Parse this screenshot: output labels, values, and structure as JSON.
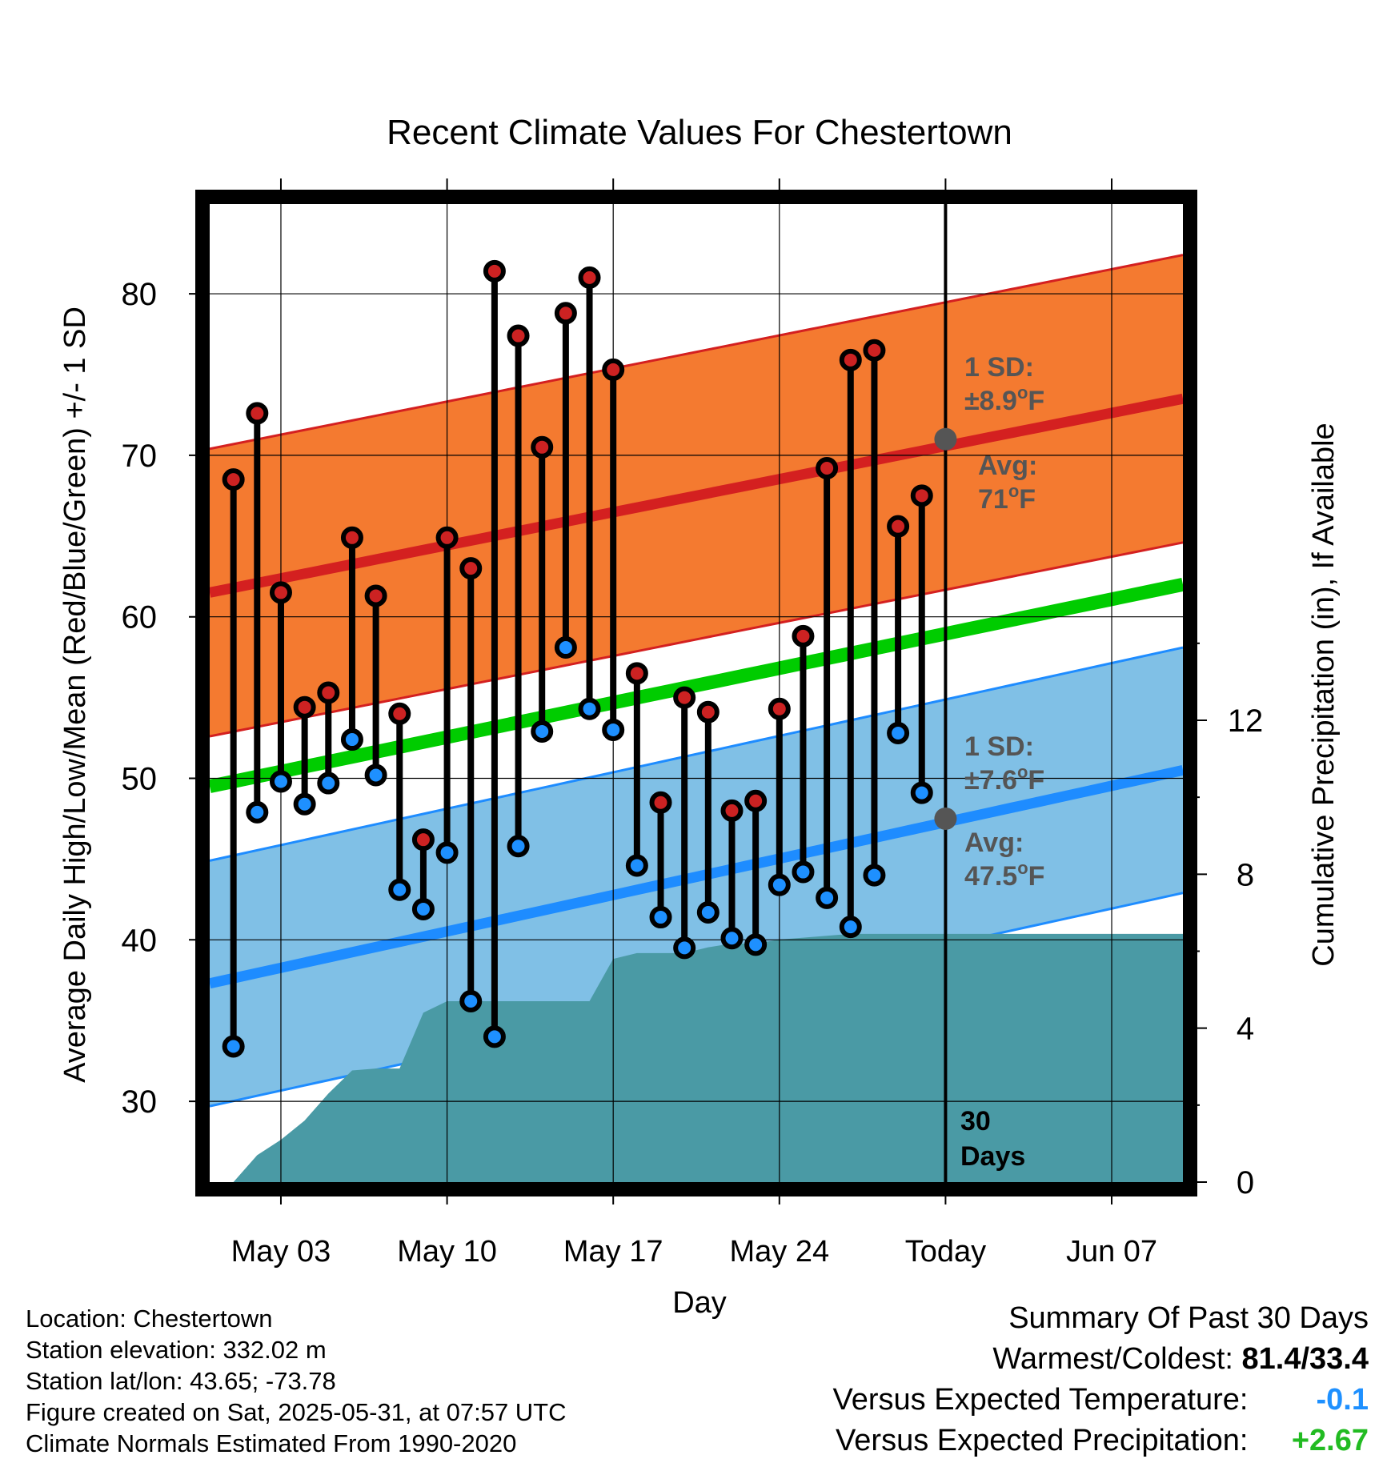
{
  "chart_data": {
    "type": "line",
    "title": "Recent Climate Values For Chestertown",
    "xlabel": "Day",
    "ylabel": "Average Daily High/Low/Mean (Red/Blue/Green) +/- 1 SD",
    "y2label": "Cumulative Precipitation (in), If Available",
    "ylim": [
      25,
      86
    ],
    "y_ticks": [
      30,
      40,
      50,
      60,
      70,
      80
    ],
    "y2lim": [
      0,
      25.6
    ],
    "y2_ticks": [
      0,
      4,
      8,
      12
    ],
    "x_range": [
      "2025-04-30",
      "2025-06-10"
    ],
    "x_ticks": [
      {
        "date": "2025-05-03",
        "label": "May 03"
      },
      {
        "date": "2025-05-10",
        "label": "May 10"
      },
      {
        "date": "2025-05-17",
        "label": "May 17"
      },
      {
        "date": "2025-05-24",
        "label": "May 24"
      },
      {
        "date": "2025-05-31",
        "label": "Today"
      },
      {
        "date": "2025-06-07",
        "label": "Jun 07"
      }
    ],
    "today": "2025-05-31",
    "grid": true,
    "colors": {
      "high_band": "#f47a30",
      "high_line": "#d42020",
      "low_band": "#80c0e6",
      "low_line": "#1e8cff",
      "mean_line": "#00cc00",
      "precip": "#4a9aa5",
      "high_marker": "#cc2222",
      "low_marker": "#1e90ff",
      "normal_marker": "#555555",
      "annotation": "#555555"
    },
    "normals": {
      "high_mean": {
        "start": 61.5,
        "end": 73.5
      },
      "high_sd": 8.9,
      "low_mean": {
        "start": 37.3,
        "end": 50.5
      },
      "low_sd": 7.6,
      "mean": {
        "start": 49.5,
        "end": 62
      }
    },
    "series": [
      {
        "name": "High",
        "values": [
          {
            "date": "2025-05-01",
            "y": 68.5
          },
          {
            "date": "2025-05-02",
            "y": 72.6
          },
          {
            "date": "2025-05-03",
            "y": 61.5
          },
          {
            "date": "2025-05-04",
            "y": 54.4
          },
          {
            "date": "2025-05-05",
            "y": 55.3
          },
          {
            "date": "2025-05-06",
            "y": 64.9
          },
          {
            "date": "2025-05-07",
            "y": 61.3
          },
          {
            "date": "2025-05-08",
            "y": 54.0
          },
          {
            "date": "2025-05-09",
            "y": 46.2
          },
          {
            "date": "2025-05-10",
            "y": 64.9
          },
          {
            "date": "2025-05-11",
            "y": 63.0
          },
          {
            "date": "2025-05-12",
            "y": 81.4
          },
          {
            "date": "2025-05-13",
            "y": 77.4
          },
          {
            "date": "2025-05-14",
            "y": 70.5
          },
          {
            "date": "2025-05-15",
            "y": 78.8
          },
          {
            "date": "2025-05-16",
            "y": 81.0
          },
          {
            "date": "2025-05-17",
            "y": 75.3
          },
          {
            "date": "2025-05-18",
            "y": 56.5
          },
          {
            "date": "2025-05-19",
            "y": 48.5
          },
          {
            "date": "2025-05-20",
            "y": 55.0
          },
          {
            "date": "2025-05-21",
            "y": 54.1
          },
          {
            "date": "2025-05-22",
            "y": 48.0
          },
          {
            "date": "2025-05-23",
            "y": 48.6
          },
          {
            "date": "2025-05-24",
            "y": 54.3
          },
          {
            "date": "2025-05-25",
            "y": 58.8
          },
          {
            "date": "2025-05-26",
            "y": 69.2
          },
          {
            "date": "2025-05-27",
            "y": 75.9
          },
          {
            "date": "2025-05-28",
            "y": 76.5
          },
          {
            "date": "2025-05-29",
            "y": 65.6
          },
          {
            "date": "2025-05-30",
            "y": 67.5
          }
        ]
      },
      {
        "name": "Low",
        "values": [
          {
            "date": "2025-05-01",
            "y": 33.4
          },
          {
            "date": "2025-05-02",
            "y": 47.9
          },
          {
            "date": "2025-05-03",
            "y": 49.8
          },
          {
            "date": "2025-05-04",
            "y": 48.4
          },
          {
            "date": "2025-05-05",
            "y": 49.7
          },
          {
            "date": "2025-05-06",
            "y": 52.4
          },
          {
            "date": "2025-05-07",
            "y": 50.2
          },
          {
            "date": "2025-05-08",
            "y": 43.1
          },
          {
            "date": "2025-05-09",
            "y": 41.9
          },
          {
            "date": "2025-05-10",
            "y": 45.4
          },
          {
            "date": "2025-05-11",
            "y": 36.2
          },
          {
            "date": "2025-05-12",
            "y": 34.0
          },
          {
            "date": "2025-05-13",
            "y": 45.8
          },
          {
            "date": "2025-05-14",
            "y": 52.9
          },
          {
            "date": "2025-05-15",
            "y": 58.1
          },
          {
            "date": "2025-05-16",
            "y": 54.3
          },
          {
            "date": "2025-05-17",
            "y": 53.0
          },
          {
            "date": "2025-05-18",
            "y": 44.6
          },
          {
            "date": "2025-05-19",
            "y": 41.4
          },
          {
            "date": "2025-05-20",
            "y": 39.5
          },
          {
            "date": "2025-05-21",
            "y": 41.7
          },
          {
            "date": "2025-05-22",
            "y": 40.1
          },
          {
            "date": "2025-05-23",
            "y": 39.7
          },
          {
            "date": "2025-05-24",
            "y": 43.4
          },
          {
            "date": "2025-05-25",
            "y": 44.2
          },
          {
            "date": "2025-05-26",
            "y": 42.6
          },
          {
            "date": "2025-05-27",
            "y": 40.8
          },
          {
            "date": "2025-05-28",
            "y": 44.0
          },
          {
            "date": "2025-05-29",
            "y": 52.8
          },
          {
            "date": "2025-05-30",
            "y": 49.1
          }
        ]
      }
    ],
    "precipitation": [
      {
        "date": "2025-04-30",
        "y": 0
      },
      {
        "date": "2025-05-01",
        "y": 0
      },
      {
        "date": "2025-05-02",
        "y": 0.7
      },
      {
        "date": "2025-05-03",
        "y": 1.1
      },
      {
        "date": "2025-05-04",
        "y": 1.6
      },
      {
        "date": "2025-05-05",
        "y": 2.3
      },
      {
        "date": "2025-05-06",
        "y": 2.9
      },
      {
        "date": "2025-05-07",
        "y": 2.95
      },
      {
        "date": "2025-05-08",
        "y": 2.95
      },
      {
        "date": "2025-05-09",
        "y": 4.4
      },
      {
        "date": "2025-05-10",
        "y": 4.7
      },
      {
        "date": "2025-05-11",
        "y": 4.7
      },
      {
        "date": "2025-05-12",
        "y": 4.7
      },
      {
        "date": "2025-05-13",
        "y": 4.7
      },
      {
        "date": "2025-05-14",
        "y": 4.7
      },
      {
        "date": "2025-05-15",
        "y": 4.7
      },
      {
        "date": "2025-05-16",
        "y": 4.7
      },
      {
        "date": "2025-05-17",
        "y": 5.8
      },
      {
        "date": "2025-05-18",
        "y": 5.95
      },
      {
        "date": "2025-05-19",
        "y": 5.95
      },
      {
        "date": "2025-05-20",
        "y": 5.95
      },
      {
        "date": "2025-05-21",
        "y": 6.1
      },
      {
        "date": "2025-05-22",
        "y": 6.2
      },
      {
        "date": "2025-05-23",
        "y": 6.2
      },
      {
        "date": "2025-05-24",
        "y": 6.3
      },
      {
        "date": "2025-05-25",
        "y": 6.35
      },
      {
        "date": "2025-05-26",
        "y": 6.4
      },
      {
        "date": "2025-05-27",
        "y": 6.45
      },
      {
        "date": "2025-05-28",
        "y": 6.45
      },
      {
        "date": "2025-05-29",
        "y": 6.45
      },
      {
        "date": "2025-05-30",
        "y": 6.45
      },
      {
        "date": "2025-05-31",
        "y": 6.45
      },
      {
        "date": "2025-06-10",
        "y": 6.45
      }
    ],
    "annotations": {
      "high_sd": {
        "line1": "1 SD:",
        "line2": "±8.9",
        "degree": "o",
        "unit": "F"
      },
      "high_avg": {
        "line1": "Avg:",
        "line2": "71",
        "degree": "o",
        "unit": "F",
        "value": 71
      },
      "low_sd": {
        "line1": "1 SD:",
        "line2": "±7.6",
        "degree": "o",
        "unit": "F"
      },
      "low_avg": {
        "line1": "Avg:",
        "line2": "47.5",
        "degree": "o",
        "unit": "F",
        "value": 47.5
      },
      "days": {
        "line1": "30",
        "line2": "Days"
      }
    }
  },
  "footer": {
    "location": "Location: Chestertown",
    "elevation": "Station elevation: 332.02 m",
    "latlon": "Station lat/lon: 43.65; -73.78",
    "created": "Figure created on Sat, 2025-05-31, at 07:57 UTC",
    "normals": "Climate Normals Estimated From 1990-2020"
  },
  "summary": {
    "title": "Summary Of Past 30 Days",
    "warm_cold_label": "Warmest/Coldest:",
    "warm_cold_value": "81.4/33.4",
    "temp_label": "Versus Expected Temperature:",
    "temp_value": "-0.1",
    "temp_color": "#1e90ff",
    "precip_label": "Versus Expected Precipitation:",
    "precip_value": "+2.67",
    "precip_color": "#22bb22"
  }
}
